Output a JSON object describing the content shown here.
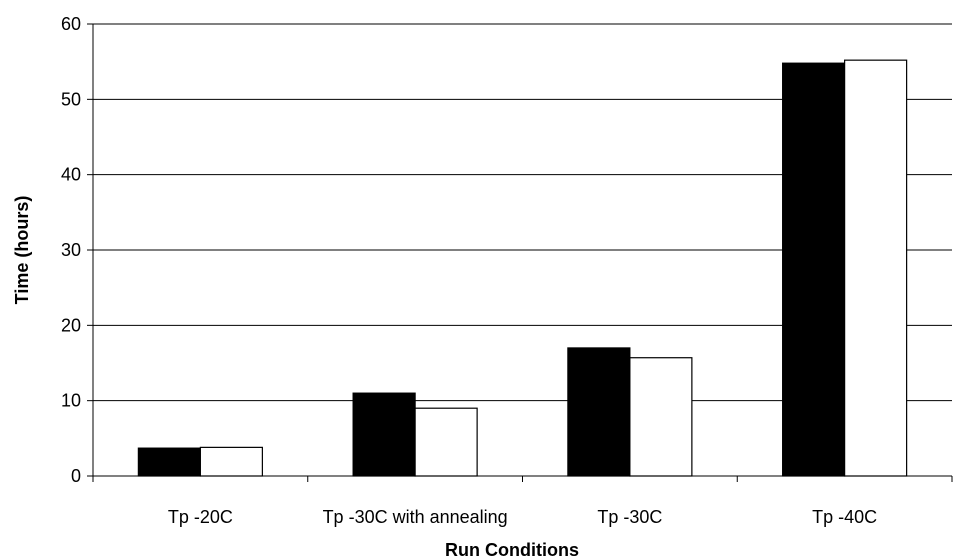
{
  "chart_data": {
    "type": "bar",
    "title": "",
    "xlabel": "Run Conditions",
    "ylabel": "Time (hours)",
    "categories": [
      "Tp -20C",
      "Tp -30C with annealing",
      "Tp -30C",
      "Tp -40C"
    ],
    "series": [
      {
        "color": "#000000",
        "values": [
          3.7,
          11.0,
          17.0,
          54.8
        ]
      },
      {
        "color": "#ffffff",
        "values": [
          3.8,
          9.0,
          15.7,
          55.2
        ]
      }
    ],
    "ylim": [
      0,
      60
    ],
    "yticks": [
      0,
      10,
      20,
      30,
      40,
      50,
      60
    ],
    "grid": true,
    "legend": "none"
  }
}
